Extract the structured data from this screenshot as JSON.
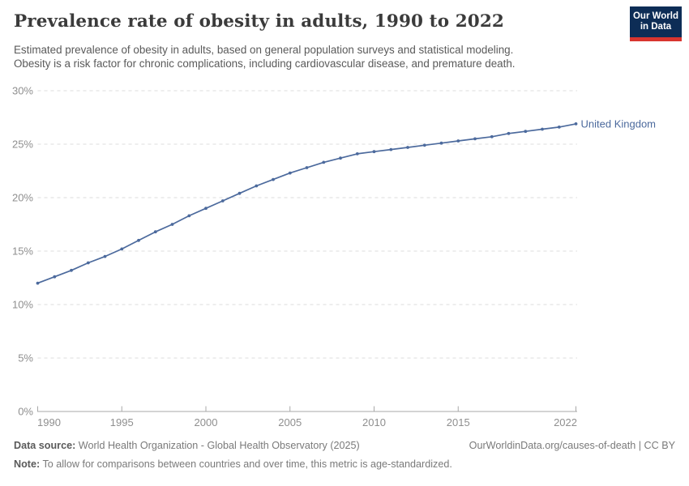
{
  "header": {
    "title": "Prevalence rate of obesity in adults, 1990 to 2022",
    "subtitle_line1": "Estimated prevalence of obesity in adults, based on general population surveys and statistical modeling.",
    "subtitle_line2": "Obesity is a risk factor for chronic complications, including cardiovascular disease, and premature death.",
    "logo": {
      "line1": "Our World",
      "line2": "in Data",
      "bg_color": "#0d2d56",
      "accent_color": "#d8352f"
    }
  },
  "chart_data": {
    "type": "line",
    "title": "Prevalence rate of obesity in adults, 1990 to 2022",
    "xlabel": "",
    "ylabel": "",
    "xlim": [
      1990,
      2022
    ],
    "ylim": [
      0,
      30
    ],
    "x_ticks": [
      1990,
      1995,
      2000,
      2005,
      2010,
      2015,
      2022
    ],
    "y_ticks": [
      0,
      5,
      10,
      15,
      20,
      25,
      30
    ],
    "y_tick_suffix": "%",
    "grid": "horizontal-dashed",
    "legend_position": "end-of-line-label",
    "x": [
      1990,
      1991,
      1992,
      1993,
      1994,
      1995,
      1996,
      1997,
      1998,
      1999,
      2000,
      2001,
      2002,
      2003,
      2004,
      2005,
      2006,
      2007,
      2008,
      2009,
      2010,
      2011,
      2012,
      2013,
      2014,
      2015,
      2016,
      2017,
      2018,
      2019,
      2020,
      2021,
      2022
    ],
    "series": [
      {
        "name": "United Kingdom",
        "color": "#4c6a9d",
        "values": [
          12.0,
          12.6,
          13.2,
          13.9,
          14.5,
          15.2,
          16.0,
          16.8,
          17.5,
          18.3,
          19.0,
          19.7,
          20.4,
          21.1,
          21.7,
          22.3,
          22.8,
          23.3,
          23.7,
          24.1,
          24.3,
          24.5,
          24.7,
          24.9,
          25.1,
          25.3,
          25.5,
          25.7,
          26.0,
          26.2,
          26.4,
          26.6,
          26.9
        ]
      }
    ],
    "colors": {
      "grid": "#dcdcdc",
      "axis": "#a8a8a8",
      "tick_label": "#8f8f8f"
    }
  },
  "footer": {
    "data_source_label": "Data source:",
    "data_source_text": " World Health Organization - Global Health Observatory (2025)",
    "credit": "OurWorldinData.org/causes-of-death | CC BY",
    "note_label": "Note:",
    "note_text": " To allow for comparisons between countries and over time, this metric is age-standardized."
  }
}
